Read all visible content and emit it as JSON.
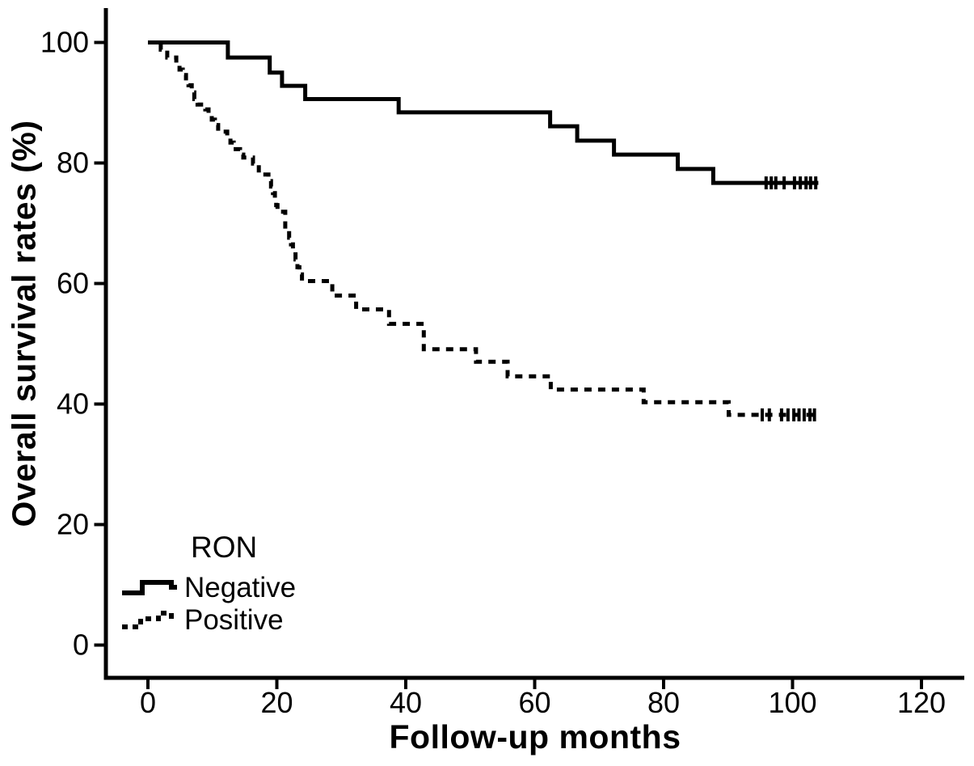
{
  "legend": {
    "title": "RON",
    "items": [
      {
        "label": "Negative",
        "line_style": "solid"
      },
      {
        "label": "Positive",
        "line_style": "dashed"
      }
    ]
  },
  "colors": {
    "line": "#000000",
    "background": "#ffffff",
    "text": "#000000"
  },
  "chart_data": {
    "type": "line",
    "subtype": "kaplan-meier-step",
    "title": "",
    "xlabel": "Follow-up months",
    "ylabel": "Overall survival rates (%)",
    "x_ticks": [
      0,
      20,
      40,
      60,
      80,
      100,
      120
    ],
    "y_ticks": [
      0,
      20,
      40,
      60,
      80,
      100
    ],
    "xlim": [
      -7,
      128
    ],
    "ylim": [
      -5,
      106
    ],
    "grid": false,
    "legend_position": "inside-lower-left",
    "series": [
      {
        "name": "Negative",
        "line_style": "solid",
        "color": "#000000",
        "steps": [
          [
            0,
            100
          ],
          [
            12.4,
            97.5
          ],
          [
            18.9,
            95.0
          ],
          [
            20.8,
            92.8
          ],
          [
            24.4,
            90.6
          ],
          [
            38.9,
            88.4
          ],
          [
            62.4,
            86.1
          ],
          [
            66.6,
            83.7
          ],
          [
            72.3,
            81.4
          ],
          [
            82.2,
            79.0
          ],
          [
            87.7,
            76.7
          ]
        ],
        "end_month": 104,
        "final_rate": 76.7,
        "censor_months": [
          95.9,
          96.7,
          97.4,
          98.7,
          100.3,
          101.2,
          102.1,
          102.8,
          103.6
        ]
      },
      {
        "name": "Positive",
        "line_style": "dashed",
        "color": "#000000",
        "steps": [
          [
            0,
            100
          ],
          [
            2.0,
            98.8
          ],
          [
            3.0,
            97.5
          ],
          [
            4.4,
            96.6
          ],
          [
            4.9,
            95.5
          ],
          [
            5.4,
            94.6
          ],
          [
            5.9,
            93.5
          ],
          [
            6.3,
            92.9
          ],
          [
            6.8,
            91.7
          ],
          [
            7.2,
            90.6
          ],
          [
            7.7,
            89.7
          ],
          [
            8.9,
            88.9
          ],
          [
            9.4,
            88.1
          ],
          [
            9.9,
            87.2
          ],
          [
            10.4,
            86.3
          ],
          [
            10.9,
            85.2
          ],
          [
            12.3,
            84.3
          ],
          [
            12.8,
            83.4
          ],
          [
            13.3,
            82.3
          ],
          [
            14.3,
            81.4
          ],
          [
            14.8,
            80.9
          ],
          [
            16.3,
            79.9
          ],
          [
            17.2,
            78.1
          ],
          [
            18.7,
            77.0
          ],
          [
            19.1,
            76.1
          ],
          [
            19.4,
            75.0
          ],
          [
            19.7,
            74.1
          ],
          [
            19.9,
            73.0
          ],
          [
            20.1,
            71.9
          ],
          [
            21.3,
            69.0
          ],
          [
            21.9,
            67.6
          ],
          [
            22.2,
            66.5
          ],
          [
            22.5,
            65.2
          ],
          [
            22.9,
            64.0
          ],
          [
            23.2,
            62.7
          ],
          [
            23.5,
            61.5
          ],
          [
            23.9,
            60.4
          ],
          [
            28.6,
            58.0
          ],
          [
            32.3,
            55.7
          ],
          [
            37.4,
            53.3
          ],
          [
            42.8,
            49.1
          ],
          [
            50.9,
            47.0
          ],
          [
            55.8,
            44.6
          ],
          [
            62.5,
            42.4
          ],
          [
            76.9,
            40.3
          ],
          [
            90.1,
            38.2
          ]
        ],
        "end_month": 104,
        "final_rate": 38.2,
        "censor_months": [
          95.3,
          96.4,
          98.3,
          99.3,
          100.2,
          101.0,
          101.8,
          102.7,
          103.4
        ]
      }
    ]
  }
}
